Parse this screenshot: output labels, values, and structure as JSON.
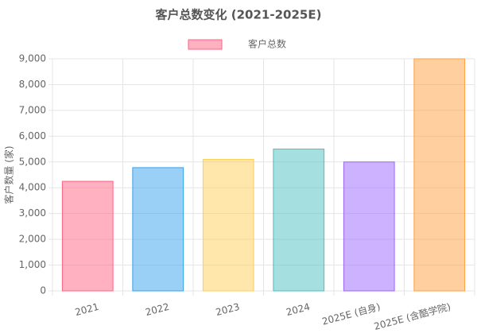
{
  "chart_data": {
    "type": "bar",
    "title": "客户总数变化 (2021-2025E)",
    "y_label": "客户数量 (家)",
    "categories": [
      "2021",
      "2022",
      "2023",
      "2024",
      "2025E (自身)",
      "2025E (含酷学院)"
    ],
    "series": [
      {
        "name": "客户总数",
        "colors": [
          "#ff6384",
          "#36a2eb",
          "#ffce56",
          "#4bc0c0",
          "#9966ff",
          "#ff9f40"
        ],
        "values": [
          4250,
          4780,
          5100,
          5500,
          5000,
          9000
        ]
      }
    ],
    "ylim": [
      0,
      9000
    ],
    "yticks": [
      0,
      {
        "value": 1000,
        "label": "1,000"
      },
      {
        "value": 2000,
        "label": "2,000"
      },
      {
        "value": 3000,
        "label": "3,000"
      },
      {
        "value": 4000,
        "label": "4,000"
      },
      {
        "value": 5000,
        "label": "5,000"
      },
      {
        "value": 6000,
        "label": "6,000"
      },
      {
        "value": 7000,
        "label": "7,000"
      },
      {
        "value": 8000,
        "label": "8,000"
      },
      {
        "value": 9000,
        "label": "9,000"
      }
    ],
    "grid": true
  }
}
